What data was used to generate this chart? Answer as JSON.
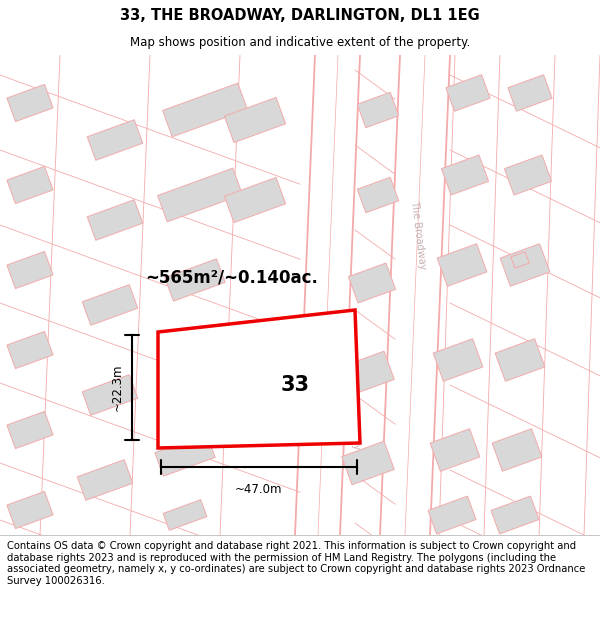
{
  "title": "33, THE BROADWAY, DARLINGTON, DL1 1EG",
  "subtitle": "Map shows position and indicative extent of the property.",
  "footer": "Contains OS data © Crown copyright and database right 2021. This information is subject to Crown copyright and database rights 2023 and is reproduced with the permission of HM Land Registry. The polygons (including the associated geometry, namely x, y co-ordinates) are subject to Crown copyright and database rights 2023 Ordnance Survey 100026316.",
  "area_text": "~565m²/~0.140ac.",
  "plot_number": "33",
  "width_label": "~47.0m",
  "height_label": "~22.3m",
  "road_color": "#f4aaaa",
  "building_fill": "#d8d8d8",
  "building_edge": "#f4aaaa",
  "highlight_color": "#ee0000",
  "road_text_color": "#c8b0b0",
  "title_fontsize": 10.5,
  "subtitle_fontsize": 8.5,
  "footer_fontsize": 7.2,
  "area_fontsize": 12,
  "measure_fontsize": 8.5,
  "plot_label_fontsize": 15
}
